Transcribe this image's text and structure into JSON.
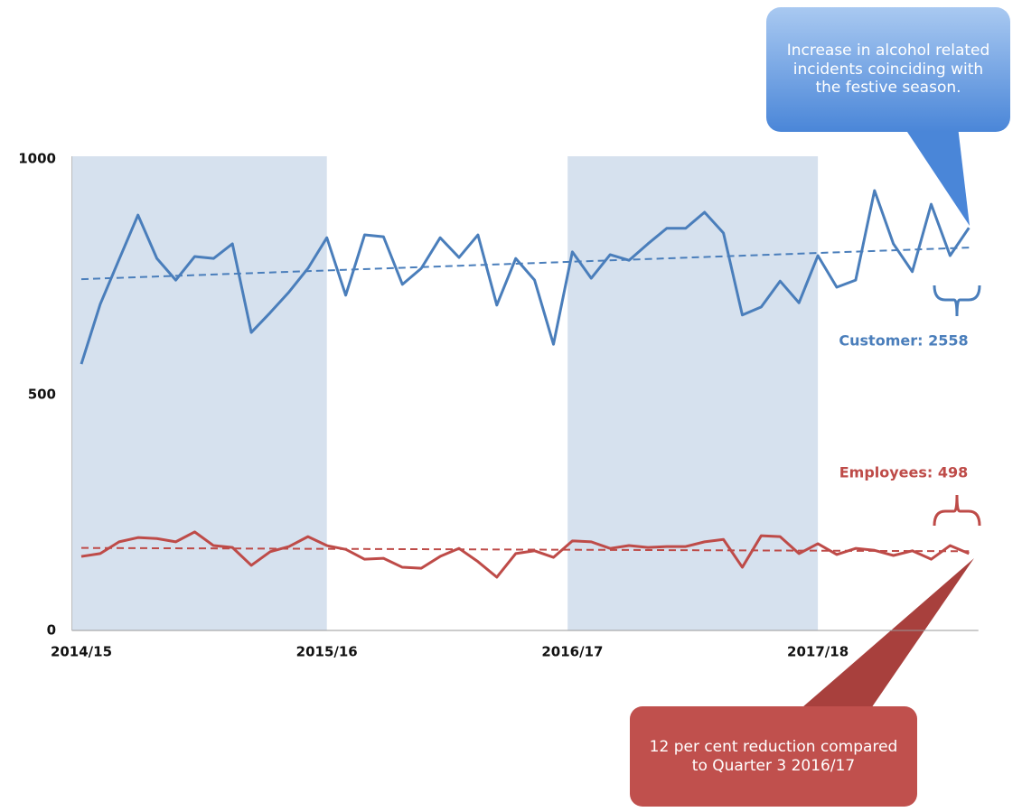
{
  "chart_data": {
    "type": "line",
    "categories": [
      "2014/15",
      null,
      null,
      null,
      null,
      null,
      null,
      null,
      null,
      null,
      null,
      null,
      null,
      "2015/16",
      null,
      null,
      null,
      null,
      null,
      null,
      null,
      null,
      null,
      null,
      null,
      null,
      "2016/17",
      null,
      null,
      null,
      null,
      null,
      null,
      null,
      null,
      null,
      null,
      null,
      null,
      "2017/18",
      null,
      null,
      null,
      null,
      null,
      null,
      null,
      null
    ],
    "series": [
      {
        "name": "Customer: 2558",
        "color": "#4a7ebb",
        "trend": [
          745,
          812
        ],
        "values": [
          565,
          692,
          787,
          881,
          789,
          743,
          793,
          789,
          820,
          632,
          674,
          718,
          768,
          833,
          711,
          839,
          835,
          734,
          768,
          833,
          791,
          839,
          690,
          789,
          743,
          607,
          803,
          747,
          797,
          785,
          820,
          853,
          853,
          887,
          843,
          669,
          686,
          741,
          695,
          795,
          728,
          743,
          933,
          820,
          761,
          904,
          795,
          854
        ]
      },
      {
        "name": "Employees: 498",
        "color": "#be4b48",
        "trend": [
          175,
          168
        ],
        "values": [
          157,
          163,
          188,
          197,
          195,
          188,
          209,
          180,
          176,
          138,
          167,
          178,
          199,
          180,
          172,
          151,
          153,
          134,
          132,
          157,
          174,
          146,
          113,
          163,
          169,
          155,
          190,
          188,
          174,
          180,
          176,
          178,
          178,
          188,
          193,
          134,
          201,
          199,
          163,
          184,
          161,
          174,
          170,
          159,
          169,
          151,
          180,
          163
        ]
      }
    ],
    "ylim": [
      0,
      1000
    ],
    "yticks": [
      0,
      500,
      1000
    ],
    "grid": false,
    "highlight_bands": [
      [
        -0.5,
        13
      ],
      [
        25.75,
        39
      ]
    ],
    "band_color": "#d6e1ee",
    "annotations": [
      {
        "text": "Increase in alcohol related incidents coinciding with the festive season.",
        "color": "#4a7ebb",
        "point": [
          47,
          854
        ]
      },
      {
        "text": "12 per cent reduction compared to Quarter 3 2016/17",
        "color": "#c0504d",
        "point": [
          47,
          163
        ]
      }
    ]
  }
}
